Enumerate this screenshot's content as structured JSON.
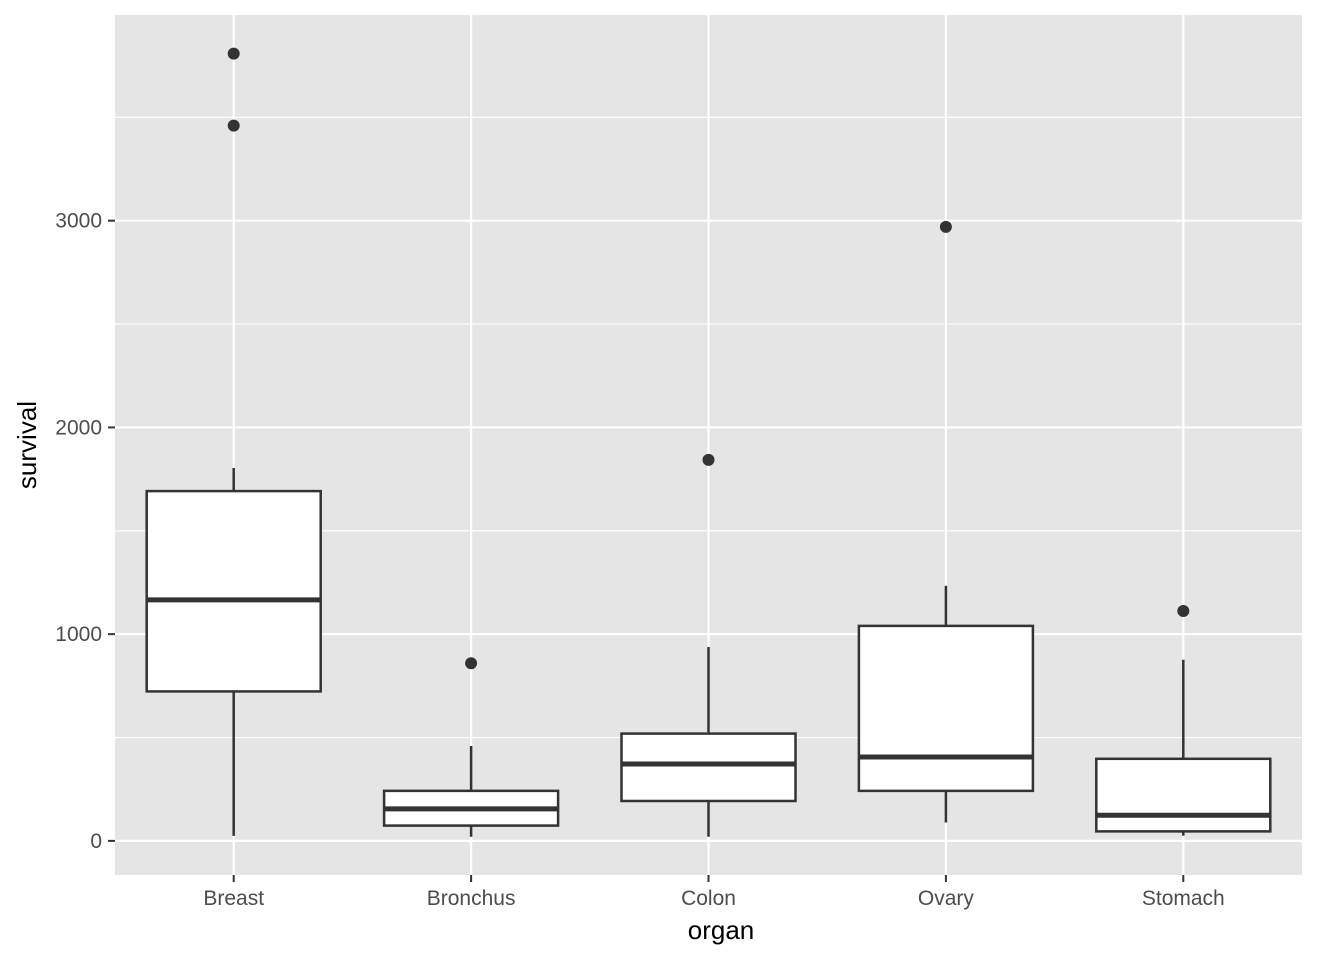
{
  "chart_data": {
    "type": "boxplot",
    "title": "",
    "xlabel": "organ",
    "ylabel": "survival",
    "ylim": [
      -165,
      3995
    ],
    "y_ticks": [
      0,
      1000,
      2000,
      3000
    ],
    "y_minor_ticks": [
      500,
      1500,
      2500,
      3500
    ],
    "grid": true,
    "legend": "none",
    "categories": [
      "Breast",
      "Bronchus",
      "Colon",
      "Ovary",
      "Stomach"
    ],
    "boxes": [
      {
        "category": "Breast",
        "lower_whisker": 24,
        "q1": 723,
        "median": 1166,
        "q3": 1692,
        "upper_whisker": 1804,
        "outliers": [
          3460,
          3808
        ]
      },
      {
        "category": "Bronchus",
        "lower_whisker": 20,
        "q1": 74,
        "median": 155,
        "q3": 242,
        "upper_whisker": 459,
        "outliers": [
          859
        ]
      },
      {
        "category": "Colon",
        "lower_whisker": 20,
        "q1": 193,
        "median": 372,
        "q3": 519,
        "upper_whisker": 938,
        "outliers": [
          1843
        ]
      },
      {
        "category": "Ovary",
        "lower_whisker": 89,
        "q1": 242,
        "median": 406,
        "q3": 1040,
        "upper_whisker": 1234,
        "outliers": [
          2970
        ]
      },
      {
        "category": "Stomach",
        "lower_whisker": 25,
        "q1": 46,
        "median": 124,
        "q3": 397,
        "upper_whisker": 876,
        "outliers": [
          1112
        ]
      }
    ],
    "colors": {
      "panel_background": "#e5e5e5",
      "grid_major": "#ffffff",
      "box_fill": "#ffffff",
      "box_line": "#333333",
      "outlier": "#333333",
      "tick_label": "#4d4d4d",
      "axis_title": "#000000"
    }
  }
}
